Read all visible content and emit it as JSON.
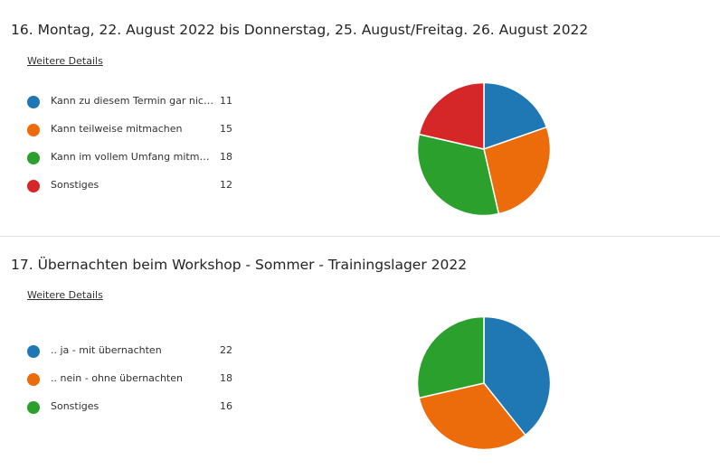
{
  "q16": {
    "title": "16.  Montag, 22. August 2022 bis Donnerstag, 25. August/Freitag. 26. August 2022",
    "details_link": "Weitere Details"
  },
  "q17": {
    "title": "17.  Übernachten beim Workshop - Sommer - Trainingslager 2022",
    "details_link": "Weitere Details"
  },
  "chart_data": [
    {
      "type": "pie",
      "title": "16.  Montag, 22. August 2022 bis Donnerstag, 25. August/Freitag. 26. August 2022",
      "categories": [
        "Kann zu diesem Termin gar nicht",
        "Kann teilweise mitmachen",
        "Kann im vollem Umfang mitmachen",
        "Sonstiges"
      ],
      "values": [
        11,
        15,
        18,
        12
      ],
      "colors": [
        "#1f77b4",
        "#ec6b0b",
        "#2ca02c",
        "#d62728"
      ],
      "legend_placement": "left"
    },
    {
      "type": "pie",
      "title": "17.  Übernachten beim Workshop - Sommer - Trainingslager 2022",
      "categories": [
        ".. ja - mit übernachten",
        ".. nein - ohne übernachten",
        "Sonstiges"
      ],
      "values": [
        22,
        18,
        16
      ],
      "colors": [
        "#1f77b4",
        "#ec6b0b",
        "#2ca02c"
      ],
      "legend_placement": "left"
    }
  ]
}
